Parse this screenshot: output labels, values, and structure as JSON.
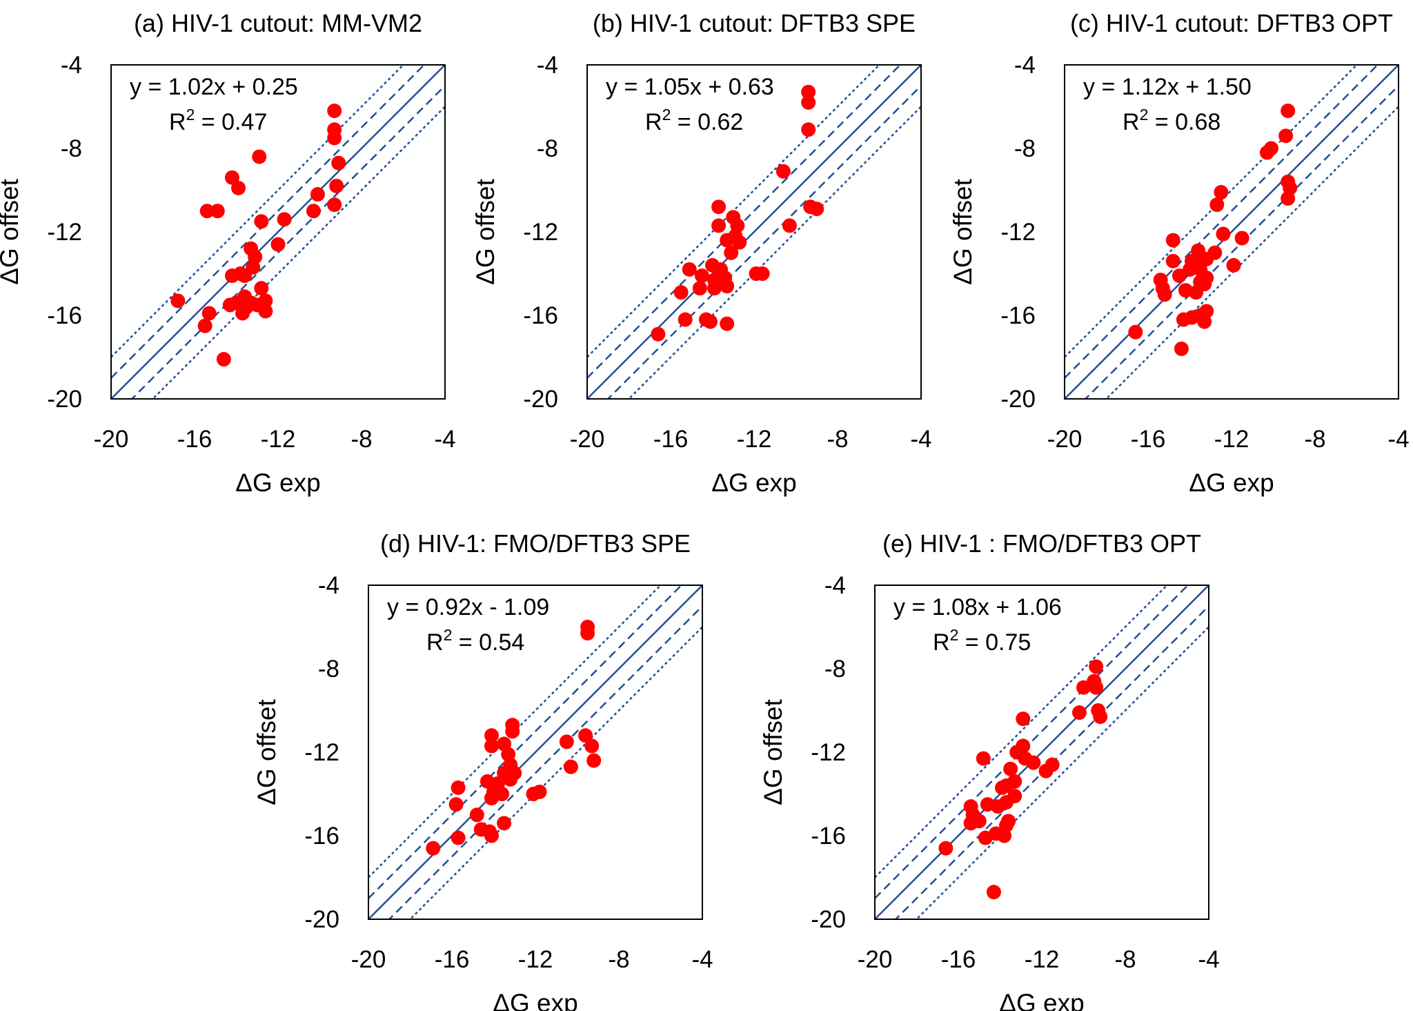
{
  "chart_data": [
    {
      "type": "scatter",
      "title": "(a) HIV-1 cutout: MM-VM2",
      "xlabel": "ΔG exp",
      "ylabel": "ΔG offset",
      "xlim": [
        -20,
        -4
      ],
      "ylim": [
        -20,
        -4
      ],
      "xticks": [
        "-20",
        "-16",
        "-12",
        "-8",
        "-4"
      ],
      "yticks": [
        "-4",
        "-8",
        "-12",
        "-16",
        "-20"
      ],
      "equation": "y = 1.02x + 0.25",
      "r2_label": "R",
      "r2_value": " = 0.47",
      "reference_lines": [
        {
          "offset": 0,
          "style": "solid"
        },
        {
          "offset": 1,
          "style": "dashed"
        },
        {
          "offset": -1,
          "style": "dashed"
        },
        {
          "offset": 2,
          "style": "dotted"
        },
        {
          "offset": -2,
          "style": "dotted"
        }
      ],
      "points": [
        [
          -9.3,
          -6.2
        ],
        [
          -9.3,
          -7.1
        ],
        [
          -9.3,
          -7.5
        ],
        [
          -9.1,
          -8.7
        ],
        [
          -9.2,
          -9.8
        ],
        [
          -9.3,
          -10.7
        ],
        [
          -10.1,
          -10.2
        ],
        [
          -10.3,
          -11.0
        ],
        [
          -12.9,
          -8.4
        ],
        [
          -14.2,
          -9.4
        ],
        [
          -13.9,
          -9.9
        ],
        [
          -15.4,
          -11.0
        ],
        [
          -14.9,
          -11.0
        ],
        [
          -11.7,
          -11.4
        ],
        [
          -12.8,
          -11.5
        ],
        [
          -12.0,
          -12.6
        ],
        [
          -13.3,
          -12.8
        ],
        [
          -13.1,
          -13.2
        ],
        [
          -13.2,
          -13.7
        ],
        [
          -13.8,
          -14.0
        ],
        [
          -13.6,
          -14.1
        ],
        [
          -14.2,
          -14.1
        ],
        [
          -12.8,
          -14.7
        ],
        [
          -12.6,
          -15.3
        ],
        [
          -13.3,
          -15.4
        ],
        [
          -13.6,
          -15.1
        ],
        [
          -14.0,
          -15.4
        ],
        [
          -14.3,
          -15.5
        ],
        [
          -13.0,
          -15.5
        ],
        [
          -13.5,
          -15.6
        ],
        [
          -13.7,
          -15.9
        ],
        [
          -15.3,
          -15.9
        ],
        [
          -12.6,
          -15.8
        ],
        [
          -16.8,
          -15.3
        ],
        [
          -15.5,
          -16.5
        ],
        [
          -14.6,
          -18.1
        ]
      ]
    },
    {
      "type": "scatter",
      "title": "(b) HIV-1 cutout: DFTB3 SPE",
      "xlabel": "ΔG exp",
      "ylabel": "ΔG offset",
      "xlim": [
        -20,
        -4
      ],
      "ylim": [
        -20,
        -4
      ],
      "xticks": [
        "-20",
        "-16",
        "-12",
        "-8",
        "-4"
      ],
      "yticks": [
        "-4",
        "-8",
        "-12",
        "-16",
        "-20"
      ],
      "equation": "y = 1.05x + 0.63",
      "r2_label": "R",
      "r2_value": " = 0.62",
      "reference_lines": [
        {
          "offset": 0,
          "style": "solid"
        },
        {
          "offset": 1,
          "style": "dashed"
        },
        {
          "offset": -1,
          "style": "dashed"
        },
        {
          "offset": 2,
          "style": "dotted"
        },
        {
          "offset": -2,
          "style": "dotted"
        }
      ],
      "points": [
        [
          -9.4,
          -5.3
        ],
        [
          -9.4,
          -5.8
        ],
        [
          -9.4,
          -7.1
        ],
        [
          -10.6,
          -9.1
        ],
        [
          -9.3,
          -10.8
        ],
        [
          -9.0,
          -10.9
        ],
        [
          -10.3,
          -11.7
        ],
        [
          -13.7,
          -10.8
        ],
        [
          -13.0,
          -11.3
        ],
        [
          -12.8,
          -11.7
        ],
        [
          -13.7,
          -11.7
        ],
        [
          -12.9,
          -12.2
        ],
        [
          -13.3,
          -12.4
        ],
        [
          -12.7,
          -12.5
        ],
        [
          -13.1,
          -13.0
        ],
        [
          -14.0,
          -13.6
        ],
        [
          -13.6,
          -13.8
        ],
        [
          -15.1,
          -13.8
        ],
        [
          -14.5,
          -14.1
        ],
        [
          -13.4,
          -14.2
        ],
        [
          -13.9,
          -14.3
        ],
        [
          -11.9,
          -14.0
        ],
        [
          -11.6,
          -14.0
        ],
        [
          -13.3,
          -14.6
        ],
        [
          -14.6,
          -14.7
        ],
        [
          -13.9,
          -14.7
        ],
        [
          -15.5,
          -14.9
        ],
        [
          -14.3,
          -16.2
        ],
        [
          -14.1,
          -16.3
        ],
        [
          -15.3,
          -16.2
        ],
        [
          -13.3,
          -16.4
        ],
        [
          -16.6,
          -16.9
        ]
      ]
    },
    {
      "type": "scatter",
      "title": "(c) HIV-1 cutout: DFTB3 OPT",
      "xlabel": "ΔG exp",
      "ylabel": "ΔG offset",
      "xlim": [
        -20,
        -4
      ],
      "ylim": [
        -20,
        -4
      ],
      "xticks": [
        "-20",
        "-16",
        "-12",
        "-8",
        "-4"
      ],
      "yticks": [
        "-4",
        "-8",
        "-12",
        "-16",
        "-20"
      ],
      "equation": "y = 1.12x + 1.50",
      "r2_label": "R",
      "r2_value": " = 0.68",
      "reference_lines": [
        {
          "offset": 0,
          "style": "solid"
        },
        {
          "offset": 1,
          "style": "dashed"
        },
        {
          "offset": -1,
          "style": "dashed"
        },
        {
          "offset": 2,
          "style": "dotted"
        },
        {
          "offset": -2,
          "style": "dotted"
        }
      ],
      "points": [
        [
          -9.3,
          -6.2
        ],
        [
          -9.4,
          -7.4
        ],
        [
          -10.1,
          -8.0
        ],
        [
          -10.3,
          -8.2
        ],
        [
          -9.3,
          -9.6
        ],
        [
          -9.2,
          -9.9
        ],
        [
          -9.3,
          -10.4
        ],
        [
          -12.5,
          -10.1
        ],
        [
          -12.7,
          -10.7
        ],
        [
          -12.4,
          -12.1
        ],
        [
          -11.5,
          -12.3
        ],
        [
          -14.8,
          -12.4
        ],
        [
          -13.6,
          -12.9
        ],
        [
          -12.8,
          -13.0
        ],
        [
          -13.6,
          -13.2
        ],
        [
          -13.9,
          -13.4
        ],
        [
          -13.2,
          -13.3
        ],
        [
          -14.8,
          -13.4
        ],
        [
          -11.9,
          -13.6
        ],
        [
          -13.5,
          -13.8
        ],
        [
          -14.0,
          -13.8
        ],
        [
          -14.5,
          -14.1
        ],
        [
          -13.2,
          -14.2
        ],
        [
          -13.5,
          -14.4
        ],
        [
          -15.4,
          -14.3
        ],
        [
          -15.3,
          -14.7
        ],
        [
          -13.3,
          -14.5
        ],
        [
          -14.2,
          -14.8
        ],
        [
          -13.7,
          -14.9
        ],
        [
          -15.2,
          -15.0
        ],
        [
          -13.2,
          -15.8
        ],
        [
          -13.5,
          -16.0
        ],
        [
          -13.9,
          -16.1
        ],
        [
          -14.3,
          -16.2
        ],
        [
          -13.3,
          -16.3
        ],
        [
          -16.6,
          -16.8
        ],
        [
          -14.4,
          -17.6
        ]
      ]
    },
    {
      "type": "scatter",
      "title": "(d) HIV-1: FMO/DFTB3 SPE",
      "xlabel": "ΔG exp",
      "ylabel": "ΔG offset",
      "xlim": [
        -20,
        -4
      ],
      "ylim": [
        -20,
        -4
      ],
      "xticks": [
        "-20",
        "-16",
        "-12",
        "-8",
        "-4"
      ],
      "yticks": [
        "-4",
        "-8",
        "-12",
        "-16",
        "-20"
      ],
      "equation": "y = 0.92x - 1.09",
      "r2_label": "R",
      "r2_value": " = 0.54",
      "reference_lines": [
        {
          "offset": 0,
          "style": "solid"
        },
        {
          "offset": 1,
          "style": "dashed"
        },
        {
          "offset": -1,
          "style": "dashed"
        },
        {
          "offset": 2,
          "style": "dotted"
        },
        {
          "offset": -2,
          "style": "dotted"
        }
      ],
      "points": [
        [
          -9.5,
          -6.0
        ],
        [
          -9.5,
          -6.3
        ],
        [
          -9.6,
          -11.2
        ],
        [
          -9.3,
          -11.7
        ],
        [
          -9.2,
          -12.4
        ],
        [
          -10.5,
          -11.5
        ],
        [
          -10.3,
          -12.7
        ],
        [
          -13.1,
          -10.7
        ],
        [
          -13.1,
          -11.0
        ],
        [
          -14.1,
          -11.2
        ],
        [
          -13.5,
          -11.6
        ],
        [
          -14.1,
          -11.7
        ],
        [
          -13.3,
          -12.1
        ],
        [
          -13.2,
          -12.6
        ],
        [
          -13.0,
          -13.0
        ],
        [
          -13.5,
          -13.0
        ],
        [
          -13.2,
          -13.3
        ],
        [
          -14.3,
          -13.4
        ],
        [
          -13.8,
          -13.5
        ],
        [
          -14.0,
          -13.9
        ],
        [
          -13.6,
          -14.0
        ],
        [
          -14.1,
          -14.2
        ],
        [
          -11.8,
          -13.9
        ],
        [
          -12.1,
          -14.0
        ],
        [
          -15.7,
          -13.7
        ],
        [
          -15.8,
          -14.5
        ],
        [
          -14.8,
          -15.0
        ],
        [
          -14.6,
          -15.7
        ],
        [
          -14.2,
          -15.8
        ],
        [
          -13.5,
          -15.4
        ],
        [
          -14.1,
          -16.0
        ],
        [
          -15.7,
          -16.1
        ],
        [
          -16.9,
          -16.6
        ]
      ]
    },
    {
      "type": "scatter",
      "title": "(e) HIV-1 : FMO/DFTB3 OPT",
      "xlabel": "ΔG exp",
      "ylabel": "ΔG offset",
      "xlim": [
        -20,
        -4
      ],
      "ylim": [
        -20,
        -4
      ],
      "xticks": [
        "-20",
        "-16",
        "-12",
        "-8",
        "-4"
      ],
      "yticks": [
        "-4",
        "-8",
        "-12",
        "-16",
        "-20"
      ],
      "equation": "y = 1.08x + 1.06",
      "r2_label": "R",
      "r2_value": " = 0.75",
      "reference_lines": [
        {
          "offset": 0,
          "style": "solid"
        },
        {
          "offset": 1,
          "style": "dashed"
        },
        {
          "offset": -1,
          "style": "dashed"
        },
        {
          "offset": 2,
          "style": "dotted"
        },
        {
          "offset": -2,
          "style": "dotted"
        }
      ],
      "points": [
        [
          -9.4,
          -7.9
        ],
        [
          -9.5,
          -8.6
        ],
        [
          -9.4,
          -8.9
        ],
        [
          -10.0,
          -8.9
        ],
        [
          -10.2,
          -10.1
        ],
        [
          -9.3,
          -10.0
        ],
        [
          -9.2,
          -10.3
        ],
        [
          -12.9,
          -10.4
        ],
        [
          -12.9,
          -11.7
        ],
        [
          -13.2,
          -12.0
        ],
        [
          -12.8,
          -12.3
        ],
        [
          -12.4,
          -12.5
        ],
        [
          -14.8,
          -12.3
        ],
        [
          -13.5,
          -12.8
        ],
        [
          -13.3,
          -13.4
        ],
        [
          -13.7,
          -13.6
        ],
        [
          -13.9,
          -13.7
        ],
        [
          -11.8,
          -12.9
        ],
        [
          -11.5,
          -12.6
        ],
        [
          -13.3,
          -14.1
        ],
        [
          -13.7,
          -14.4
        ],
        [
          -14.1,
          -14.6
        ],
        [
          -14.6,
          -14.5
        ],
        [
          -15.4,
          -14.6
        ],
        [
          -15.3,
          -15.0
        ],
        [
          -15.0,
          -15.3
        ],
        [
          -15.4,
          -15.4
        ],
        [
          -13.6,
          -15.3
        ],
        [
          -13.7,
          -15.5
        ],
        [
          -14.2,
          -15.9
        ],
        [
          -13.8,
          -16.0
        ],
        [
          -14.7,
          -16.1
        ],
        [
          -16.6,
          -16.6
        ],
        [
          -14.3,
          -18.7
        ]
      ]
    }
  ]
}
